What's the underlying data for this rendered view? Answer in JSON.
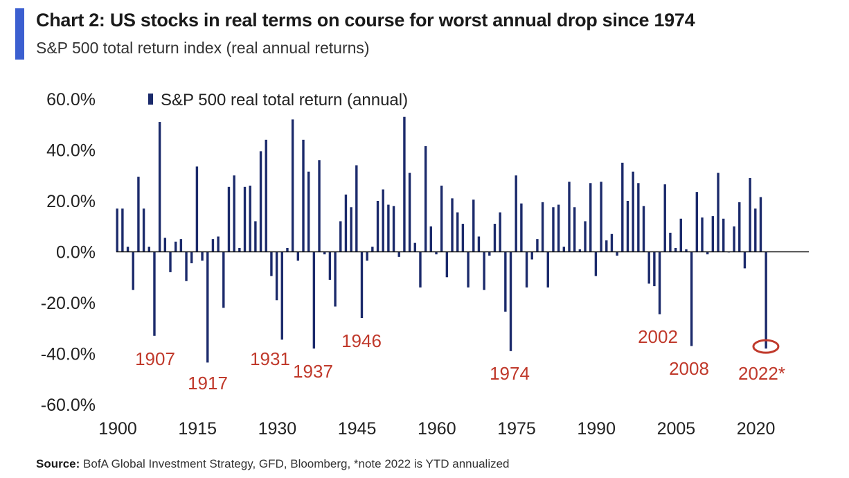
{
  "header": {
    "title": "Chart 2: US stocks in real terms on course for worst annual  drop since 1974",
    "subtitle": "S&P 500 total return index (real annual returns)"
  },
  "footer": {
    "source_label": "Source:",
    "source_text": "BofA Global Investment Strategy, GFD, Bloomberg, *note 2022  is YTD annualized"
  },
  "colors": {
    "bar": "#1b2a6b",
    "annotation": "#c0392b",
    "accent": "#3b5fd0"
  },
  "chart_data": {
    "type": "bar",
    "title": "Chart 2: US stocks in real terms on course for worst annual  drop since 1974",
    "subtitle": "S&P 500 total return index (real annual returns)",
    "xlabel": "",
    "ylabel": "",
    "ylim": [
      -60,
      60
    ],
    "yticks": [
      "60.0%",
      "40.0%",
      "20.0%",
      "0.0%",
      "-20.0%",
      "-40.0%",
      "-60.0%"
    ],
    "ytick_values": [
      60,
      40,
      20,
      0,
      -20,
      -40,
      -60
    ],
    "xticks": [
      "1900",
      "1915",
      "1930",
      "1945",
      "1960",
      "1975",
      "1990",
      "2005",
      "2020"
    ],
    "xtick_values": [
      1900,
      1915,
      1930,
      1945,
      1960,
      1975,
      1990,
      2005,
      2020
    ],
    "legend_position": "top-left",
    "grid": false,
    "series": [
      {
        "name": "S&P 500 real total return (annual)",
        "x": [
          1900,
          1901,
          1902,
          1903,
          1904,
          1905,
          1906,
          1907,
          1908,
          1909,
          1910,
          1911,
          1912,
          1913,
          1914,
          1915,
          1916,
          1917,
          1918,
          1919,
          1920,
          1921,
          1922,
          1923,
          1924,
          1925,
          1926,
          1927,
          1928,
          1929,
          1930,
          1931,
          1932,
          1933,
          1934,
          1935,
          1936,
          1937,
          1938,
          1939,
          1940,
          1941,
          1942,
          1943,
          1944,
          1945,
          1946,
          1947,
          1948,
          1949,
          1950,
          1951,
          1952,
          1953,
          1954,
          1955,
          1956,
          1957,
          1958,
          1959,
          1960,
          1961,
          1962,
          1963,
          1964,
          1965,
          1966,
          1967,
          1968,
          1969,
          1970,
          1971,
          1972,
          1973,
          1974,
          1975,
          1976,
          1977,
          1978,
          1979,
          1980,
          1981,
          1982,
          1983,
          1984,
          1985,
          1986,
          1987,
          1988,
          1989,
          1990,
          1991,
          1992,
          1993,
          1994,
          1995,
          1996,
          1997,
          1998,
          1999,
          2000,
          2001,
          2002,
          2003,
          2004,
          2005,
          2006,
          2007,
          2008,
          2009,
          2010,
          2011,
          2012,
          2013,
          2014,
          2015,
          2016,
          2017,
          2018,
          2019,
          2020,
          2021,
          2022
        ],
        "values": [
          17,
          17,
          2,
          -15,
          29.5,
          17,
          2,
          -33,
          51,
          5.5,
          -8,
          4,
          5,
          -11.5,
          -4.5,
          33.5,
          -3.5,
          -43.5,
          5,
          6,
          -22,
          25.5,
          30,
          1.5,
          25.5,
          26,
          12,
          39.5,
          44,
          -9.5,
          -19,
          -34.5,
          1.5,
          52,
          -3.5,
          44,
          31.5,
          -38,
          36,
          -1,
          -11,
          -21.5,
          12,
          22.5,
          17.5,
          34,
          -26,
          -3.5,
          2,
          20,
          24.5,
          18.5,
          18,
          -2,
          53,
          31,
          3.5,
          -14,
          41.5,
          10,
          -1,
          26,
          -10,
          21,
          15.5,
          11,
          -14,
          20.5,
          6,
          -15,
          -1.5,
          11,
          15.5,
          -23.5,
          -39,
          30,
          19,
          -14,
          -3,
          5,
          19.5,
          -14,
          17.5,
          18.5,
          2,
          27.5,
          17.5,
          1,
          12,
          27,
          -9.5,
          27.5,
          4.5,
          7,
          -1.5,
          35,
          20,
          31.5,
          27,
          18,
          -12.5,
          -13.5,
          -24.5,
          26.5,
          7.5,
          1.5,
          13,
          1,
          -37,
          23.5,
          13.5,
          -1,
          14,
          31,
          13,
          0,
          10,
          19.5,
          -6.5,
          29,
          17,
          21.5,
          -38
        ]
      }
    ],
    "annotations": [
      {
        "text": "1907",
        "year": 1907
      },
      {
        "text": "1917",
        "year": 1917
      },
      {
        "text": "1931",
        "year": 1931
      },
      {
        "text": "1937",
        "year": 1937
      },
      {
        "text": "1946",
        "year": 1946
      },
      {
        "text": "1974",
        "year": 1974
      },
      {
        "text": "2002",
        "year": 2002
      },
      {
        "text": "2008",
        "year": 2008
      },
      {
        "text": "2022*",
        "year": 2022
      }
    ]
  }
}
